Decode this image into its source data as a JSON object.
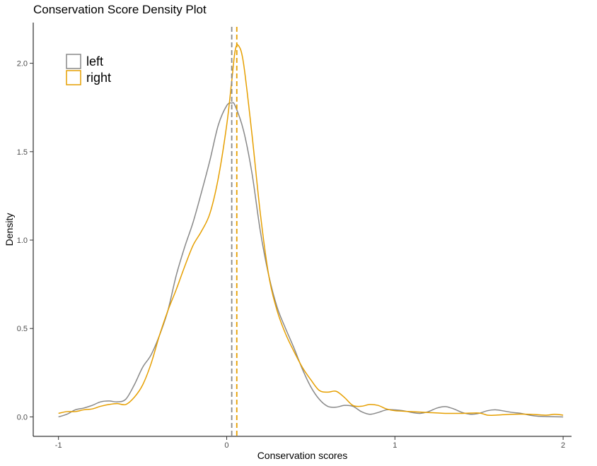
{
  "chart_data": {
    "type": "line",
    "title": "Conservation Score Density Plot",
    "xlabel": "Conservation scores",
    "ylabel": "Density",
    "xlim": [
      -1.15,
      2.05
    ],
    "ylim": [
      -0.11,
      2.23
    ],
    "x_ticks": [
      -1,
      0,
      1,
      2
    ],
    "x_tick_labels": [
      "-1",
      "0",
      "1",
      "2"
    ],
    "y_ticks": [
      0.0,
      0.5,
      1.0,
      1.5,
      2.0
    ],
    "y_tick_labels": [
      "0.0",
      "0.5",
      "1.0",
      "1.5",
      "2.0"
    ],
    "grid": false,
    "legend_position": "top-left",
    "series": [
      {
        "name": "left",
        "color": "#888888",
        "mean_line_x": 0.03,
        "points": [
          [
            -1.0,
            0.0
          ],
          [
            -0.95,
            0.015
          ],
          [
            -0.9,
            0.04
          ],
          [
            -0.85,
            0.05
          ],
          [
            -0.8,
            0.065
          ],
          [
            -0.75,
            0.085
          ],
          [
            -0.7,
            0.09
          ],
          [
            -0.65,
            0.085
          ],
          [
            -0.6,
            0.1
          ],
          [
            -0.55,
            0.18
          ],
          [
            -0.5,
            0.28
          ],
          [
            -0.45,
            0.35
          ],
          [
            -0.4,
            0.46
          ],
          [
            -0.35,
            0.6
          ],
          [
            -0.3,
            0.8
          ],
          [
            -0.25,
            0.96
          ],
          [
            -0.2,
            1.1
          ],
          [
            -0.15,
            1.27
          ],
          [
            -0.1,
            1.45
          ],
          [
            -0.05,
            1.65
          ],
          [
            0.0,
            1.76
          ],
          [
            0.03,
            1.775
          ],
          [
            0.05,
            1.76
          ],
          [
            0.1,
            1.62
          ],
          [
            0.15,
            1.38
          ],
          [
            0.2,
            1.05
          ],
          [
            0.25,
            0.8
          ],
          [
            0.3,
            0.62
          ],
          [
            0.35,
            0.5
          ],
          [
            0.4,
            0.39
          ],
          [
            0.45,
            0.27
          ],
          [
            0.5,
            0.17
          ],
          [
            0.55,
            0.1
          ],
          [
            0.6,
            0.06
          ],
          [
            0.65,
            0.055
          ],
          [
            0.7,
            0.065
          ],
          [
            0.75,
            0.06
          ],
          [
            0.8,
            0.03
          ],
          [
            0.85,
            0.015
          ],
          [
            0.9,
            0.025
          ],
          [
            0.95,
            0.04
          ],
          [
            1.0,
            0.04
          ],
          [
            1.05,
            0.035
          ],
          [
            1.1,
            0.025
          ],
          [
            1.15,
            0.02
          ],
          [
            1.2,
            0.03
          ],
          [
            1.25,
            0.05
          ],
          [
            1.3,
            0.058
          ],
          [
            1.35,
            0.045
          ],
          [
            1.4,
            0.025
          ],
          [
            1.45,
            0.015
          ],
          [
            1.5,
            0.02
          ],
          [
            1.55,
            0.035
          ],
          [
            1.6,
            0.04
          ],
          [
            1.65,
            0.033
          ],
          [
            1.7,
            0.025
          ],
          [
            1.75,
            0.02
          ],
          [
            1.8,
            0.01
          ],
          [
            1.85,
            0.004
          ],
          [
            1.9,
            0.002
          ],
          [
            2.0,
            0.0
          ]
        ]
      },
      {
        "name": "right",
        "color": "#E69F00",
        "mean_line_x": 0.06,
        "points": [
          [
            -1.0,
            0.02
          ],
          [
            -0.95,
            0.03
          ],
          [
            -0.9,
            0.03
          ],
          [
            -0.85,
            0.04
          ],
          [
            -0.8,
            0.045
          ],
          [
            -0.75,
            0.06
          ],
          [
            -0.7,
            0.07
          ],
          [
            -0.65,
            0.075
          ],
          [
            -0.6,
            0.07
          ],
          [
            -0.55,
            0.11
          ],
          [
            -0.5,
            0.18
          ],
          [
            -0.45,
            0.3
          ],
          [
            -0.4,
            0.46
          ],
          [
            -0.35,
            0.6
          ],
          [
            -0.3,
            0.72
          ],
          [
            -0.25,
            0.85
          ],
          [
            -0.2,
            0.97
          ],
          [
            -0.15,
            1.05
          ],
          [
            -0.1,
            1.15
          ],
          [
            -0.05,
            1.35
          ],
          [
            0.0,
            1.65
          ],
          [
            0.03,
            1.9
          ],
          [
            0.05,
            2.07
          ],
          [
            0.07,
            2.1
          ],
          [
            0.1,
            2.0
          ],
          [
            0.15,
            1.6
          ],
          [
            0.2,
            1.15
          ],
          [
            0.25,
            0.8
          ],
          [
            0.3,
            0.6
          ],
          [
            0.35,
            0.47
          ],
          [
            0.4,
            0.37
          ],
          [
            0.45,
            0.28
          ],
          [
            0.5,
            0.21
          ],
          [
            0.55,
            0.15
          ],
          [
            0.6,
            0.14
          ],
          [
            0.65,
            0.145
          ],
          [
            0.7,
            0.11
          ],
          [
            0.75,
            0.065
          ],
          [
            0.8,
            0.06
          ],
          [
            0.85,
            0.07
          ],
          [
            0.9,
            0.065
          ],
          [
            0.95,
            0.045
          ],
          [
            1.0,
            0.035
          ],
          [
            1.1,
            0.03
          ],
          [
            1.2,
            0.025
          ],
          [
            1.3,
            0.02
          ],
          [
            1.4,
            0.02
          ],
          [
            1.5,
            0.022
          ],
          [
            1.55,
            0.01
          ],
          [
            1.6,
            0.01
          ],
          [
            1.7,
            0.015
          ],
          [
            1.8,
            0.015
          ],
          [
            1.9,
            0.01
          ],
          [
            1.95,
            0.015
          ],
          [
            2.0,
            0.01
          ]
        ]
      }
    ]
  }
}
